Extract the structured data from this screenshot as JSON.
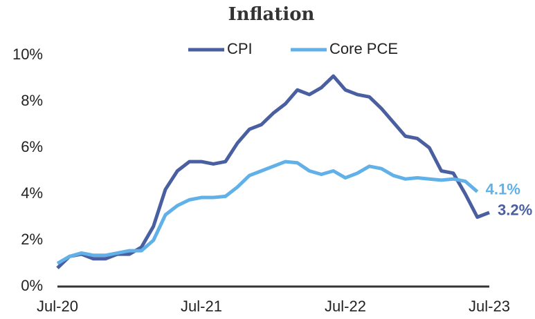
{
  "chart_data": {
    "type": "line",
    "title": "Inflation",
    "categories": [
      "Jul-20",
      null,
      null,
      null,
      null,
      null,
      null,
      null,
      null,
      null,
      null,
      null,
      "Jul-21",
      null,
      null,
      null,
      null,
      null,
      null,
      null,
      null,
      null,
      null,
      null,
      "Jul-22",
      null,
      null,
      null,
      null,
      null,
      null,
      null,
      null,
      null,
      null,
      null,
      "Jul-23"
    ],
    "series": [
      {
        "name": "CPI",
        "color": "#4a5fa0",
        "values": [
          0.8,
          1.3,
          1.4,
          1.2,
          1.2,
          1.4,
          1.4,
          1.7,
          2.6,
          4.2,
          5.0,
          5.4,
          5.4,
          5.3,
          5.4,
          6.2,
          6.8,
          7.0,
          7.5,
          7.9,
          8.5,
          8.3,
          8.6,
          9.1,
          8.5,
          8.3,
          8.2,
          7.7,
          7.1,
          6.5,
          6.4,
          6.0,
          5.0,
          4.9,
          4.0,
          3.0,
          3.2
        ],
        "value_labels": [
          null,
          null,
          null,
          null,
          null,
          null,
          null,
          null,
          null,
          null,
          null,
          null,
          null,
          null,
          null,
          null,
          null,
          null,
          null,
          null,
          null,
          null,
          null,
          null,
          null,
          null,
          null,
          null,
          null,
          null,
          null,
          null,
          null,
          null,
          null,
          null,
          "3.2%"
        ]
      },
      {
        "name": "Core PCE",
        "color": "#62b0e8",
        "values": [
          1.0,
          1.3,
          1.45,
          1.35,
          1.35,
          1.45,
          1.55,
          1.55,
          2.0,
          3.1,
          3.5,
          3.75,
          3.85,
          3.85,
          3.9,
          4.3,
          4.8,
          5.0,
          5.2,
          5.4,
          5.35,
          5.0,
          4.85,
          5.0,
          4.7,
          4.9,
          5.2,
          5.1,
          4.8,
          4.65,
          4.7,
          4.65,
          4.6,
          4.65,
          4.55,
          4.1,
          null
        ],
        "value_labels": [
          null,
          null,
          null,
          null,
          null,
          null,
          null,
          null,
          null,
          null,
          null,
          null,
          null,
          null,
          null,
          null,
          null,
          null,
          null,
          null,
          null,
          null,
          null,
          null,
          null,
          null,
          null,
          null,
          null,
          null,
          null,
          null,
          null,
          null,
          null,
          "4.1%",
          null
        ]
      }
    ],
    "ylim": [
      0,
      10
    ],
    "yticks": [
      {
        "value": 0,
        "label": "0%"
      },
      {
        "value": 2,
        "label": "2%"
      },
      {
        "value": 4,
        "label": "4%"
      },
      {
        "value": 6,
        "label": "6%"
      },
      {
        "value": 8,
        "label": "8%"
      },
      {
        "value": 10,
        "label": "10%"
      }
    ],
    "legend": "top"
  }
}
